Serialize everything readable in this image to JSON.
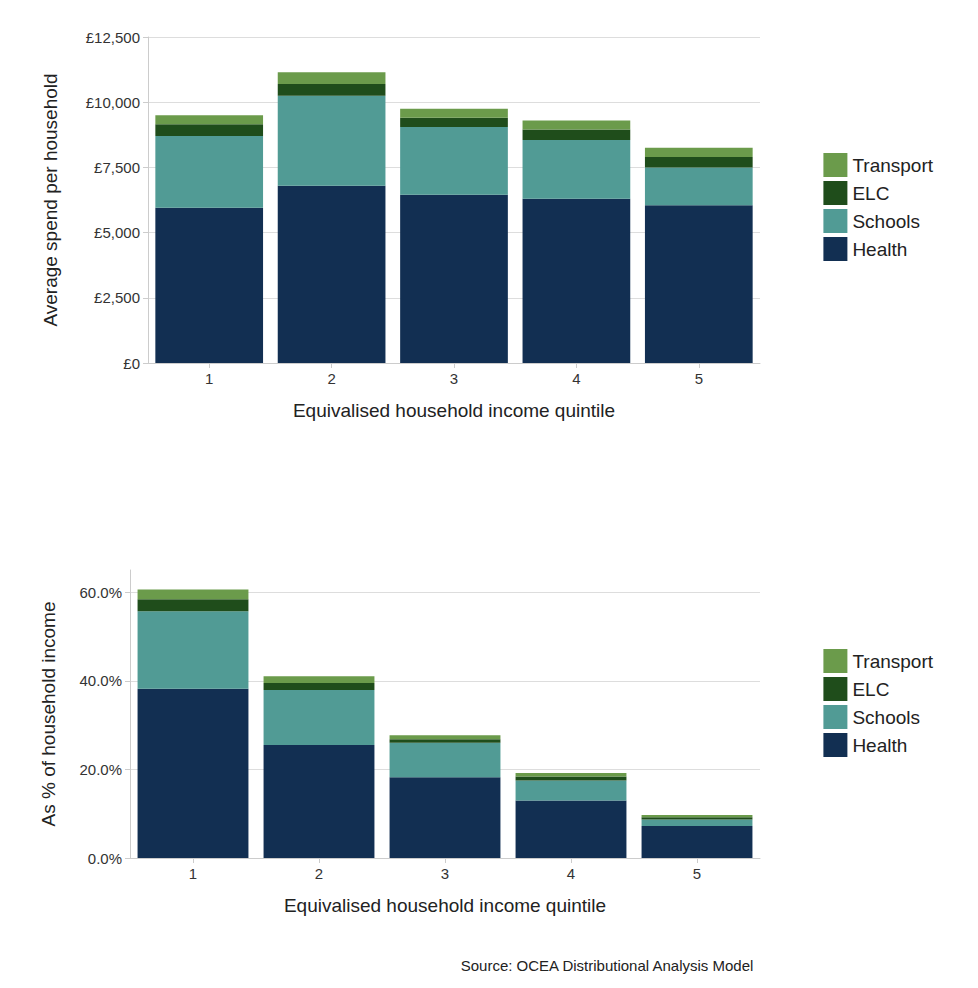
{
  "chart_data": [
    {
      "type": "bar",
      "stacked": true,
      "grid": true,
      "legend": "right",
      "x_label": "Equivalised household income quintile",
      "y_label": "Average spend per household",
      "categories": [
        "1",
        "2",
        "3",
        "4",
        "5"
      ],
      "series": [
        {
          "name": "Health",
          "color": "#122f52",
          "values": [
            5950,
            6800,
            6450,
            6300,
            6050
          ]
        },
        {
          "name": "Schools",
          "color": "#519b95",
          "values": [
            2750,
            3450,
            2600,
            2250,
            1450
          ]
        },
        {
          "name": "ELC",
          "color": "#1f4d1b",
          "values": [
            450,
            450,
            350,
            400,
            400
          ]
        },
        {
          "name": "Transport",
          "color": "#6b9b4b",
          "values": [
            350,
            450,
            350,
            350,
            350
          ]
        }
      ],
      "ylim": [
        0,
        12500
      ],
      "yticks": [
        {
          "value": 0,
          "label": "£0"
        },
        {
          "value": 2500,
          "label": "£2,500"
        },
        {
          "value": 5000,
          "label": "£5,000"
        },
        {
          "value": 7500,
          "label": "£7,500"
        },
        {
          "value": 10000,
          "label": "£10,000"
        },
        {
          "value": 12500,
          "label": "£12,500"
        }
      ]
    },
    {
      "type": "bar",
      "stacked": true,
      "grid": true,
      "legend": "right",
      "x_label": "Equivalised household income quintile",
      "y_label": "As % of household income",
      "annotations": [
        "Source: OCEA Distributional Analysis Model"
      ],
      "categories": [
        "1",
        "2",
        "3",
        "4",
        "5"
      ],
      "series": [
        {
          "name": "Health",
          "color": "#122f52",
          "values": [
            38.2,
            25.5,
            18.2,
            13.0,
            7.2
          ]
        },
        {
          "name": "Schools",
          "color": "#519b95",
          "values": [
            17.5,
            12.4,
            7.8,
            4.5,
            1.5
          ]
        },
        {
          "name": "ELC",
          "color": "#1f4d1b",
          "values": [
            2.7,
            1.6,
            0.8,
            0.9,
            0.5
          ]
        },
        {
          "name": "Transport",
          "color": "#6b9b4b",
          "values": [
            2.2,
            1.5,
            0.9,
            0.8,
            0.5
          ]
        }
      ],
      "ylim": [
        0,
        65
      ],
      "yticks": [
        {
          "value": 0,
          "label": "0.0%"
        },
        {
          "value": 20,
          "label": "20.0%"
        },
        {
          "value": 40,
          "label": "40.0%"
        },
        {
          "value": 60,
          "label": "60.0%"
        }
      ]
    }
  ]
}
